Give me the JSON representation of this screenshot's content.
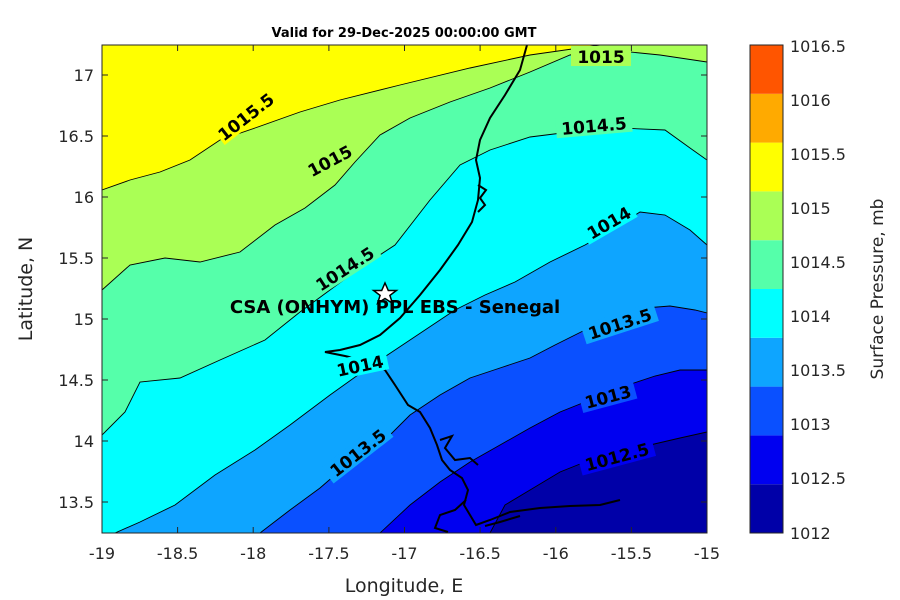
{
  "chart_data": {
    "type": "contour-map",
    "title": "Valid for 29-Dec-2025 00:00:00 GMT",
    "xlabel": "Longitude, E",
    "ylabel": "Latitude, N",
    "xlim": [
      -19,
      -15
    ],
    "ylim": [
      13.25,
      17.25
    ],
    "xticks": [
      "-19",
      "-18.5",
      "-18",
      "-17.5",
      "-17",
      "-16.5",
      "-16",
      "-15.5",
      "-15"
    ],
    "yticks": [
      "13.5",
      "14",
      "14.5",
      "15",
      "15.5",
      "16",
      "16.5",
      "17"
    ],
    "colorbar": {
      "label": "Surface Pressure, mb",
      "levels": [
        "1012",
        "1012.5",
        "1013",
        "1013.5",
        "1014",
        "1014.5",
        "1015",
        "1015.5",
        "1016",
        "1016.5"
      ],
      "colors": [
        "#0000a8",
        "#0000f0",
        "#0a50ff",
        "#0ea5ff",
        "#00ffff",
        "#55ffaa",
        "#aaff55",
        "#ffff00",
        "#ffaa00",
        "#ff5500"
      ]
    },
    "contour_labels": [
      "1015",
      "1015.5",
      "1015",
      "1014.5",
      "1014.5",
      "1014",
      "1014",
      "1013.5",
      "1013.5",
      "1013",
      "1012.5"
    ],
    "site": {
      "name": "CSA (ONHYM) PPL EBS  - Senegal",
      "lon": -17.12,
      "lat": 15.23
    }
  }
}
